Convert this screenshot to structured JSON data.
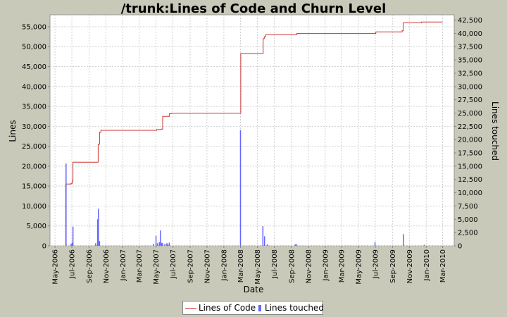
{
  "chart_data": {
    "type": "line+bar",
    "title": "/trunk:Lines of Code and Churn Level",
    "xlabel": "Date",
    "ylabel": "Lines",
    "y2label": "Lines touched",
    "x_tick_labels": [
      "May-2006",
      "Jul-2006",
      "Sep-2006",
      "Nov-2006",
      "Jan-2007",
      "Mar-2007",
      "May-2007",
      "Jul-2007",
      "Sep-2007",
      "Nov-2007",
      "Jan-2008",
      "Mar-2008",
      "May-2008",
      "Jul-2008",
      "Sep-2008",
      "Nov-2008",
      "Jan-2009",
      "Mar-2009",
      "May-2009",
      "Jul-2009",
      "Sep-2009",
      "Nov-2009",
      "Jan-2010",
      "Mar-2010"
    ],
    "ylim": [
      0,
      58000
    ],
    "y_ticks": [
      0,
      5000,
      10000,
      15000,
      20000,
      25000,
      30000,
      35000,
      40000,
      45000,
      50000,
      55000
    ],
    "y_tick_labels": [
      "0",
      "5,000",
      "10,000",
      "15,000",
      "20,000",
      "25,000",
      "30,000",
      "35,000",
      "40,000",
      "45,000",
      "50,000",
      "55,000"
    ],
    "y2lim": [
      0,
      43500
    ],
    "y2_ticks": [
      0,
      2500,
      5000,
      7500,
      10000,
      12500,
      15000,
      17500,
      20000,
      22500,
      25000,
      27500,
      30000,
      32500,
      35000,
      37500,
      40000,
      42500
    ],
    "y2_tick_labels": [
      "0",
      "2,500",
      "5,000",
      "7,500",
      "10,000",
      "12,500",
      "15,000",
      "17,500",
      "20,000",
      "22,500",
      "25,000",
      "27,500",
      "30,000",
      "32,500",
      "35,000",
      "37,500",
      "40,000",
      "42,500"
    ],
    "grid": true,
    "legend_position": "bottom",
    "series": [
      {
        "name": "Lines of Code",
        "type": "step-line",
        "color": "#cc3333",
        "points": [
          [
            "2006-06-08",
            0
          ],
          [
            "2006-06-09",
            15500
          ],
          [
            "2006-06-28",
            15700
          ],
          [
            "2006-07-03",
            16300
          ],
          [
            "2006-07-05",
            21000
          ],
          [
            "2006-10-01",
            21000
          ],
          [
            "2006-10-04",
            25500
          ],
          [
            "2006-10-09",
            28500
          ],
          [
            "2006-10-14",
            29000
          ],
          [
            "2007-04-28",
            29000
          ],
          [
            "2007-05-03",
            29200
          ],
          [
            "2007-05-20",
            29300
          ],
          [
            "2007-05-25",
            32500
          ],
          [
            "2007-06-08",
            32500
          ],
          [
            "2007-06-18",
            33200
          ],
          [
            "2007-06-25",
            33300
          ],
          [
            "2008-02-29",
            33300
          ],
          [
            "2008-03-02",
            48300
          ],
          [
            "2008-05-18",
            48300
          ],
          [
            "2008-05-22",
            52000
          ],
          [
            "2008-05-26",
            52500
          ],
          [
            "2008-05-31",
            53000
          ],
          [
            "2008-09-10",
            53000
          ],
          [
            "2008-09-20",
            53300
          ],
          [
            "2009-06-28",
            53300
          ],
          [
            "2009-07-03",
            53700
          ],
          [
            "2009-10-01",
            53700
          ],
          [
            "2009-10-06",
            54000
          ],
          [
            "2009-10-10",
            56000
          ],
          [
            "2009-12-10",
            56000
          ],
          [
            "2009-12-15",
            56200
          ],
          [
            "2010-03-01",
            56200
          ]
        ]
      },
      {
        "name": "Lines touched",
        "type": "bar",
        "color": "#6666ff",
        "points": [
          [
            "2006-06-10",
            15500
          ],
          [
            "2006-06-28",
            400
          ],
          [
            "2006-07-02",
            600
          ],
          [
            "2006-07-05",
            3600
          ],
          [
            "2006-09-25",
            500
          ],
          [
            "2006-10-02",
            5000
          ],
          [
            "2006-10-05",
            7000
          ],
          [
            "2006-10-09",
            900
          ],
          [
            "2007-04-22",
            400
          ],
          [
            "2007-05-01",
            1900
          ],
          [
            "2007-05-06",
            500
          ],
          [
            "2007-05-13",
            700
          ],
          [
            "2007-05-17",
            2900
          ],
          [
            "2007-05-21",
            600
          ],
          [
            "2007-05-25",
            500
          ],
          [
            "2007-06-02",
            400
          ],
          [
            "2007-06-09",
            500
          ],
          [
            "2007-06-13",
            300
          ],
          [
            "2007-06-18",
            600
          ],
          [
            "2008-03-01",
            21800
          ],
          [
            "2008-05-21",
            3700
          ],
          [
            "2008-05-27",
            1800
          ],
          [
            "2008-06-06",
            300
          ],
          [
            "2008-09-15",
            300
          ],
          [
            "2008-09-20",
            300
          ],
          [
            "2009-06-30",
            700
          ],
          [
            "2009-10-11",
            2200
          ],
          [
            "2009-12-25",
            200
          ]
        ]
      }
    ]
  }
}
